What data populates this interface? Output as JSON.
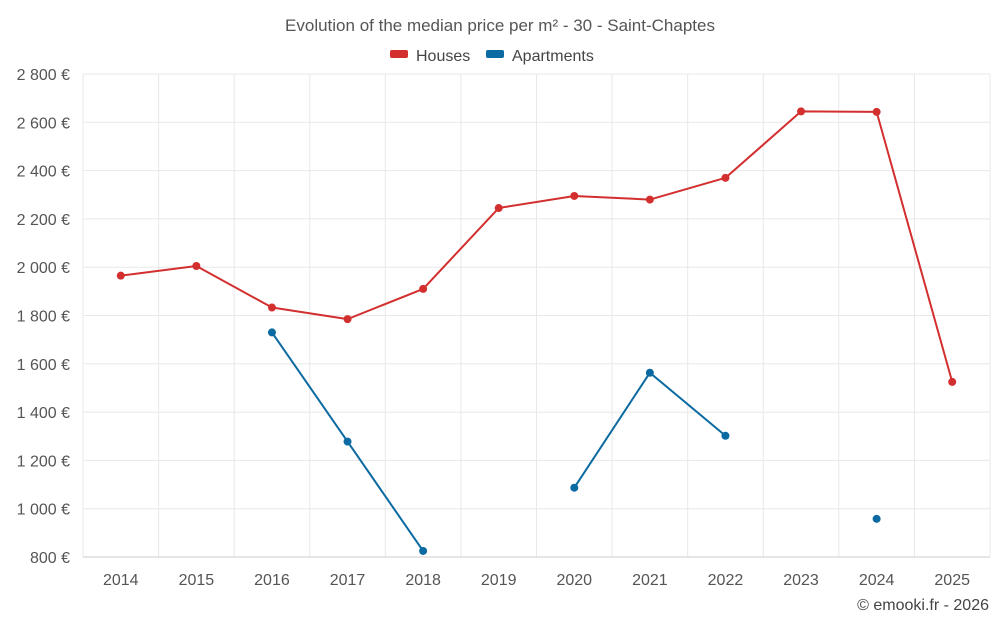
{
  "chart_data": {
    "type": "line",
    "title": "Evolution of the median price per m² - 30 - Saint-Chaptes",
    "categories": [
      "2014",
      "2015",
      "2016",
      "2017",
      "2018",
      "2019",
      "2020",
      "2021",
      "2022",
      "2023",
      "2024",
      "2025"
    ],
    "ylim": [
      800,
      2800
    ],
    "yticks": [
      800,
      1000,
      1200,
      1400,
      1600,
      1800,
      2000,
      2200,
      2400,
      2600,
      2800
    ],
    "ytick_labels": [
      "800 €",
      "1 000 €",
      "1 200 €",
      "1 400 €",
      "1 600 €",
      "1 800 €",
      "2 000 €",
      "2 200 €",
      "2 400 €",
      "2 600 €",
      "2 800 €"
    ],
    "legend_position": "top-center",
    "grid": true,
    "series": [
      {
        "name": "Houses",
        "color": "#d32f2f",
        "values": [
          1965,
          2005,
          1833,
          1785,
          1910,
          2245,
          2295,
          2280,
          2370,
          2645,
          2643,
          1525
        ]
      },
      {
        "name": "Apartments",
        "color": "#0a6aa1",
        "values": [
          null,
          null,
          1730,
          1278,
          825,
          null,
          1087,
          1563,
          1302,
          null,
          958,
          null
        ]
      }
    ]
  },
  "footer": {
    "copyright": "© emooki.fr - 2026"
  }
}
